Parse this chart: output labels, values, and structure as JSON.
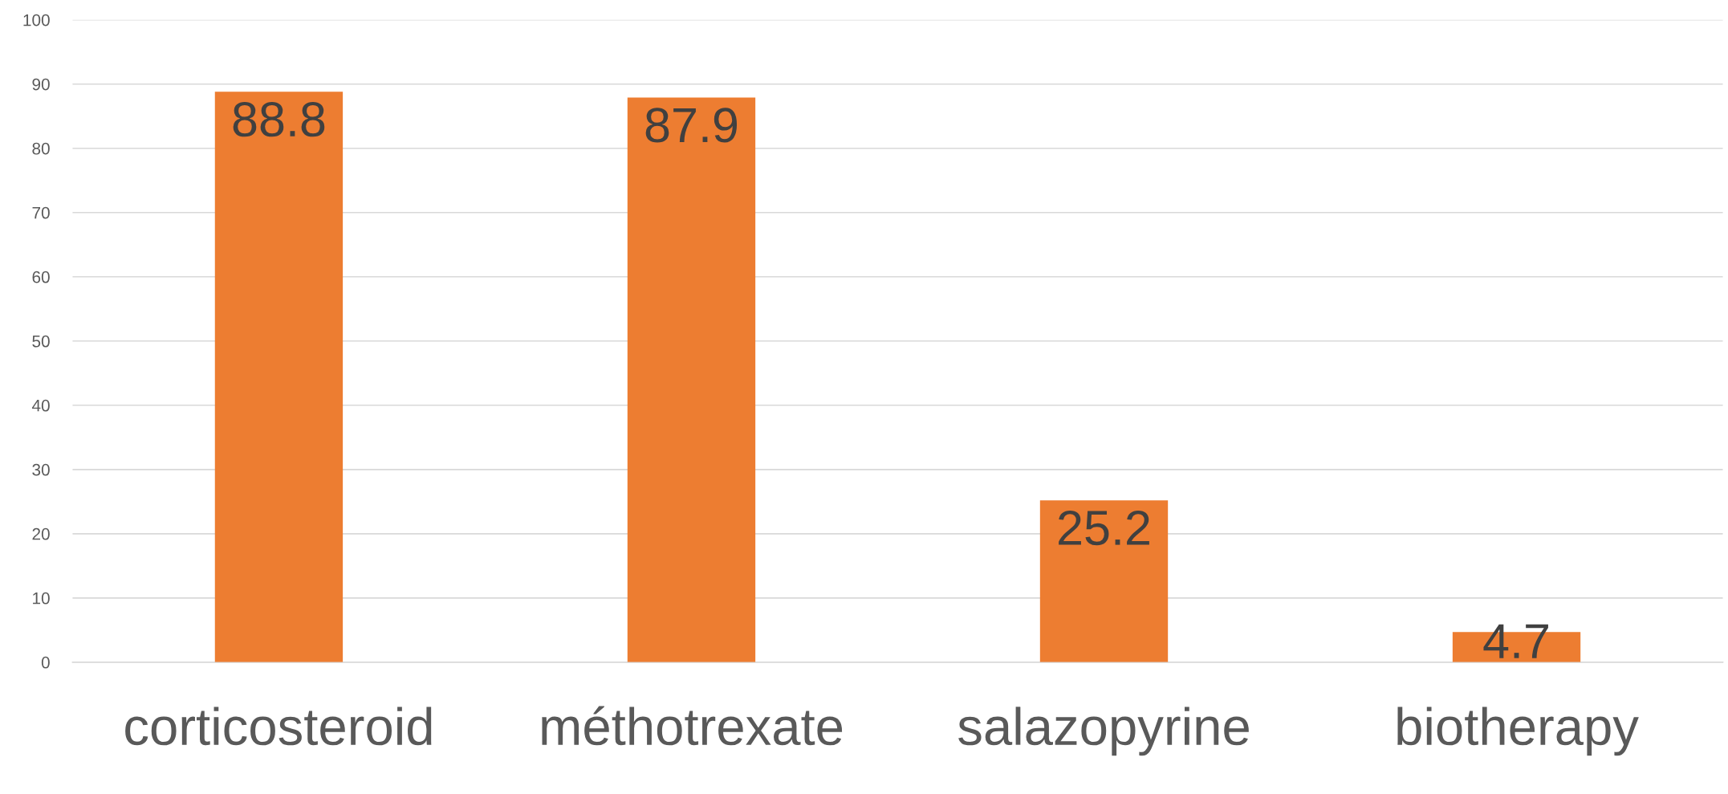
{
  "chart_data": {
    "type": "bar",
    "categories": [
      "corticosteroid",
      "méthotrexate",
      "salazopyrine",
      "biotherapy"
    ],
    "values": [
      88.8,
      87.9,
      25.2,
      4.7
    ],
    "color": "#ed7d31",
    "ylim": [
      0,
      100
    ],
    "yticks": [
      0,
      10,
      20,
      30,
      40,
      50,
      60,
      70,
      80,
      90,
      100
    ],
    "grid": "y",
    "data_labels": true,
    "legend": false
  }
}
